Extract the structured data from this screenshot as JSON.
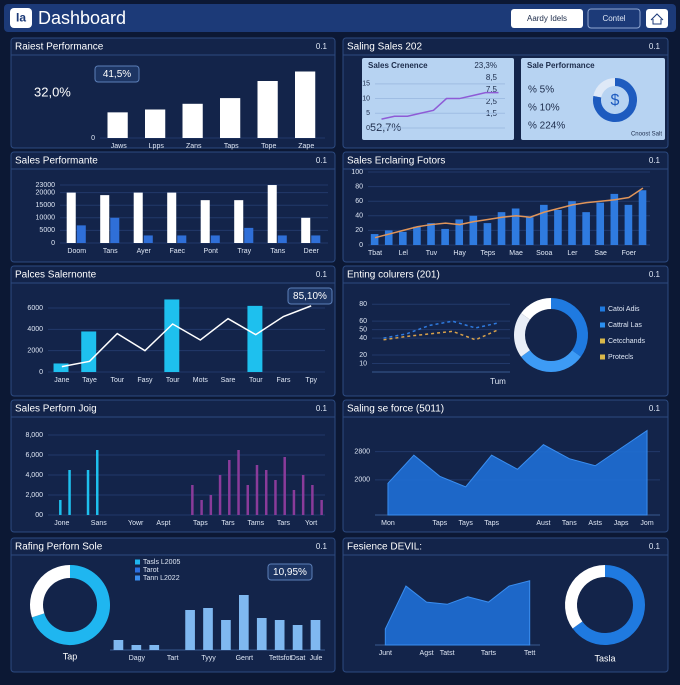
{
  "header": {
    "logo": "Ia",
    "title": "Dashboard",
    "buttons": [
      "Aardy Idels",
      "Contel"
    ]
  },
  "chart_data": [
    {
      "type": "bar",
      "title": "Raiest Performance",
      "corner": "0.1",
      "badge": "41,5%",
      "big_text": "32,0%",
      "categories": [
        "Jaws",
        "Lpps",
        "Zans",
        "Taps",
        "Tope",
        "Zape"
      ],
      "series": [
        {
          "kind": "bar",
          "color": "#ffffff",
          "values": [
            27,
            30,
            36,
            42,
            60,
            70
          ]
        }
      ],
      "ylim": [
        0,
        80
      ],
      "yticks": [
        0
      ]
    },
    {
      "type": "line",
      "title": "Saling Sales 202",
      "corner": "0.1",
      "subtitle": "Sales Crenence",
      "annotation": "52,7%",
      "notes": [
        "23,3%",
        "8,5",
        "7,5",
        "2,5",
        "1,5"
      ],
      "categories": [
        null,
        null,
        null,
        null,
        null,
        null,
        null,
        null,
        null,
        null
      ],
      "series": [
        {
          "kind": "line",
          "color": "#8e5bd6",
          "values": [
            3,
            4,
            4,
            5,
            6,
            10,
            10,
            11,
            12,
            12
          ]
        }
      ],
      "ylim": [
        0,
        18
      ],
      "yticks": [
        0,
        5,
        10,
        15
      ]
    },
    {
      "type": "donut",
      "subtitle": "Sale Performance",
      "items": [
        "% 5%",
        "% 10%",
        "% 224%"
      ],
      "footer": "Cnoost Salt",
      "donut": {
        "values": [
          78,
          22
        ],
        "colors": [
          "#1e5bbf",
          "#dfe9f7"
        ],
        "center": "$"
      }
    },
    {
      "type": "bar",
      "title": "Sales Performante",
      "corner": "0.1",
      "categories": [
        "Doom",
        "Tans",
        "Ayer",
        "Faec",
        "Pont",
        "Tray",
        "Tans",
        "Deer"
      ],
      "series": [
        {
          "kind": "bar",
          "color": "#ffffff",
          "values": [
            20000,
            19000,
            20000,
            20000,
            17000,
            17000,
            23000,
            10000
          ]
        },
        {
          "kind": "bar",
          "color": "#2f6fd8",
          "values": [
            7000,
            10000,
            3000,
            3000,
            3000,
            6000,
            3000,
            3000
          ]
        }
      ],
      "ylim": [
        0,
        25000
      ],
      "yticks": [
        0,
        5000,
        10000,
        15000,
        20000,
        23000
      ]
    },
    {
      "type": "combo",
      "title": "Sales Erclaring Fotors",
      "corner": "0.1",
      "categories": [
        "Tbat",
        null,
        "Lel",
        null,
        "Tuv",
        null,
        "Hay",
        null,
        "Teps",
        null,
        "Mae",
        null,
        "Sooa",
        null,
        "Ler",
        null,
        "Sae",
        null,
        "Foer",
        null
      ],
      "series": [
        {
          "kind": "bar",
          "color": "#2f7be0",
          "values": [
            15,
            20,
            18,
            25,
            30,
            22,
            35,
            40,
            30,
            45,
            50,
            38,
            55,
            48,
            60,
            45,
            58,
            70,
            55,
            75
          ]
        },
        {
          "kind": "line",
          "color": "#e0955a",
          "values": [
            10,
            15,
            20,
            25,
            28,
            30,
            28,
            32,
            35,
            38,
            40,
            38,
            45,
            50,
            55,
            58,
            60,
            62,
            65,
            78
          ]
        }
      ],
      "ylim": [
        0,
        100
      ],
      "yticks": [
        0,
        20,
        40,
        60,
        80,
        100
      ]
    },
    {
      "type": "combo",
      "title": "Palces Salernonte",
      "corner": "0.1",
      "badge": "85,10%",
      "categories": [
        "Jane",
        "Taye",
        "Tour",
        "Fasy",
        "Tour",
        "Mots",
        "Sare",
        "Tour",
        "Fars",
        "Tpy"
      ],
      "series": [
        {
          "kind": "bar",
          "color": "#1ec0ee",
          "values": [
            800,
            3800,
            null,
            null,
            6800,
            null,
            null,
            6200,
            null,
            null
          ]
        },
        {
          "kind": "line",
          "color": "#ffffff",
          "values": [
            500,
            1000,
            3600,
            2000,
            4500,
            3000,
            5000,
            3500,
            5200,
            6200
          ]
        }
      ],
      "ylim": [
        0,
        7500
      ],
      "yticks": [
        0,
        2000,
        4000,
        6000
      ]
    },
    {
      "type": "line",
      "title": "Enting colurers (201)",
      "corner": "0.1",
      "xlabel": "Tum",
      "categories": [
        null,
        null,
        null,
        null,
        null,
        null
      ],
      "series": [
        {
          "kind": "line",
          "dash": true,
          "color": "#2f7be0",
          "values": [
            40,
            45,
            55,
            60,
            52,
            58
          ]
        },
        {
          "kind": "line",
          "dash": true,
          "color": "#d9a24a",
          "values": [
            38,
            42,
            45,
            48,
            38,
            50
          ]
        }
      ],
      "ylim": [
        0,
        85
      ],
      "yticks": [
        10,
        20,
        40,
        50,
        60,
        80
      ],
      "donut": {
        "values": [
          35,
          30,
          20,
          15
        ],
        "colors": [
          "#1f7ae0",
          "#3d9bf5",
          "#e9eef7",
          "#ffffff"
        ],
        "legend": [
          "Catoi Adis",
          "Cattral Las",
          "Cetcchands",
          "Protecls"
        ],
        "legend_colors": [
          "#1f7ae0",
          "#2b8ff0",
          "#d9b84a",
          "#d9b84a"
        ]
      }
    },
    {
      "type": "bar",
      "title": "Sales Perforn Joig",
      "corner": "0.1",
      "categories": [
        null,
        "Jone",
        null,
        null,
        null,
        "Sans",
        null,
        null,
        null,
        "Yowr",
        null,
        null,
        "Aspt",
        null,
        null,
        null,
        "Taps",
        null,
        null,
        "Tars",
        null,
        null,
        "Tams",
        null,
        null,
        "Tars",
        null,
        null,
        "Yort",
        null
      ],
      "series": [
        {
          "kind": "bar",
          "color": "#1ec0ee",
          "values": [
            null,
            1500,
            4500,
            null,
            4500,
            6500,
            null,
            null,
            null,
            null,
            null,
            null,
            null,
            null,
            null,
            null,
            null,
            null,
            null,
            null,
            null,
            null,
            null,
            null,
            null,
            null,
            null,
            null,
            null,
            null
          ]
        },
        {
          "kind": "bar",
          "color": "#8a3b9a",
          "values": [
            null,
            null,
            null,
            null,
            null,
            null,
            null,
            null,
            null,
            null,
            null,
            null,
            null,
            null,
            null,
            3000,
            1500,
            2000,
            4000,
            5500,
            6500,
            3000,
            5000,
            4500,
            3500,
            5800,
            2500,
            4000,
            3000,
            1500
          ]
        }
      ],
      "ylim": [
        0,
        8500
      ],
      "yticks": [
        {
          "value": 0,
          "label": "00"
        },
        {
          "value": 2000,
          "label": "2,000"
        },
        {
          "value": 4000,
          "label": "4,000"
        },
        {
          "value": 6000,
          "label": "6,000"
        },
        {
          "value": 8000,
          "label": "8,000"
        }
      ]
    },
    {
      "type": "area",
      "title": "Saling se force (5011)",
      "corner": "0.1",
      "categories": [
        "Mon",
        null,
        "Taps",
        "Tays",
        "Taps",
        null,
        "Aust",
        "Tans",
        "Asts",
        "Japs",
        "Jom"
      ],
      "series": [
        {
          "kind": "area",
          "color": "#1f6fd6",
          "values": [
            1900,
            2700,
            2100,
            1800,
            2700,
            2300,
            3000,
            2600,
            2400,
            2900,
            3400
          ]
        }
      ],
      "ylim": [
        1000,
        3700
      ],
      "yticks": [
        2000,
        2800
      ]
    },
    {
      "type": "bar",
      "title": "Rafing Perforn Sole",
      "corner": "0.1",
      "badge": "10,95%",
      "categories": [
        null,
        "Dagy",
        null,
        "Tart",
        null,
        "Tyyy",
        null,
        "Genrt",
        null,
        "Tettsfot",
        "Dsat",
        "Jule"
      ],
      "series": [
        {
          "kind": "bar",
          "color": "#7fb8f0",
          "values": [
            10,
            5,
            5,
            null,
            40,
            42,
            30,
            55,
            32,
            30,
            25,
            30
          ]
        }
      ],
      "ylim": [
        0,
        60
      ],
      "donut": {
        "values": [
          70,
          30
        ],
        "colors": [
          "#1fb6f0",
          "#ffffff"
        ],
        "label": "Tap",
        "legend": [
          "Tasls L2005",
          "Tarot",
          "Tann L2022"
        ],
        "legend_colors": [
          "#1fb6f0",
          "#2d6fe0",
          "#3a8ef0"
        ]
      }
    },
    {
      "type": "area",
      "title": "Fesience DEVIL:",
      "corner": "0.1",
      "categories": [
        "Junt",
        null,
        "Agst",
        "Tatst",
        null,
        "Tarts",
        null,
        "Tett"
      ],
      "series": [
        {
          "kind": "area",
          "color": "#1f6fd6",
          "values": [
            15,
            55,
            40,
            38,
            45,
            40,
            55,
            60
          ]
        }
      ],
      "ylim": [
        0,
        70
      ],
      "donut": {
        "values": [
          65,
          35
        ],
        "colors": [
          "#1f7ae0",
          "#ffffff"
        ],
        "label": "Tasla"
      }
    }
  ]
}
